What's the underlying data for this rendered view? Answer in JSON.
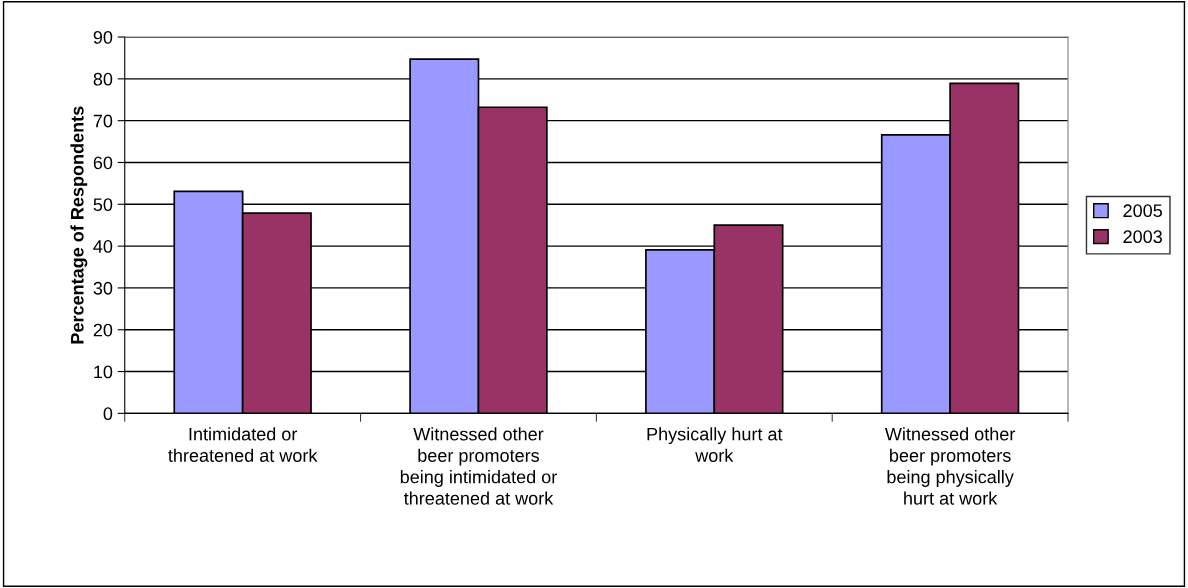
{
  "chart_data": {
    "type": "bar",
    "ylabel": "Percentage of Respondents",
    "categories": [
      "Intimidated or\nthreatened at work",
      "Witnessed other\nbeer promoters\nbeing intimidated or\nthreatened at work",
      "Physically hurt at\nwork",
      "Witnessed other\nbeer promoters\nbeing physically\nhurt at work"
    ],
    "series": [
      {
        "name": "2005",
        "color": "#9999ff",
        "values": [
          53.1,
          84.7,
          39.1,
          66.6
        ]
      },
      {
        "name": "2003",
        "color": "#993366",
        "values": [
          47.9,
          73.2,
          45.0,
          78.9
        ]
      }
    ],
    "ylim": [
      0,
      90
    ],
    "yticks": [
      0,
      10,
      20,
      30,
      40,
      50,
      60,
      70,
      80,
      90
    ],
    "grid": "y",
    "legend": "right"
  }
}
